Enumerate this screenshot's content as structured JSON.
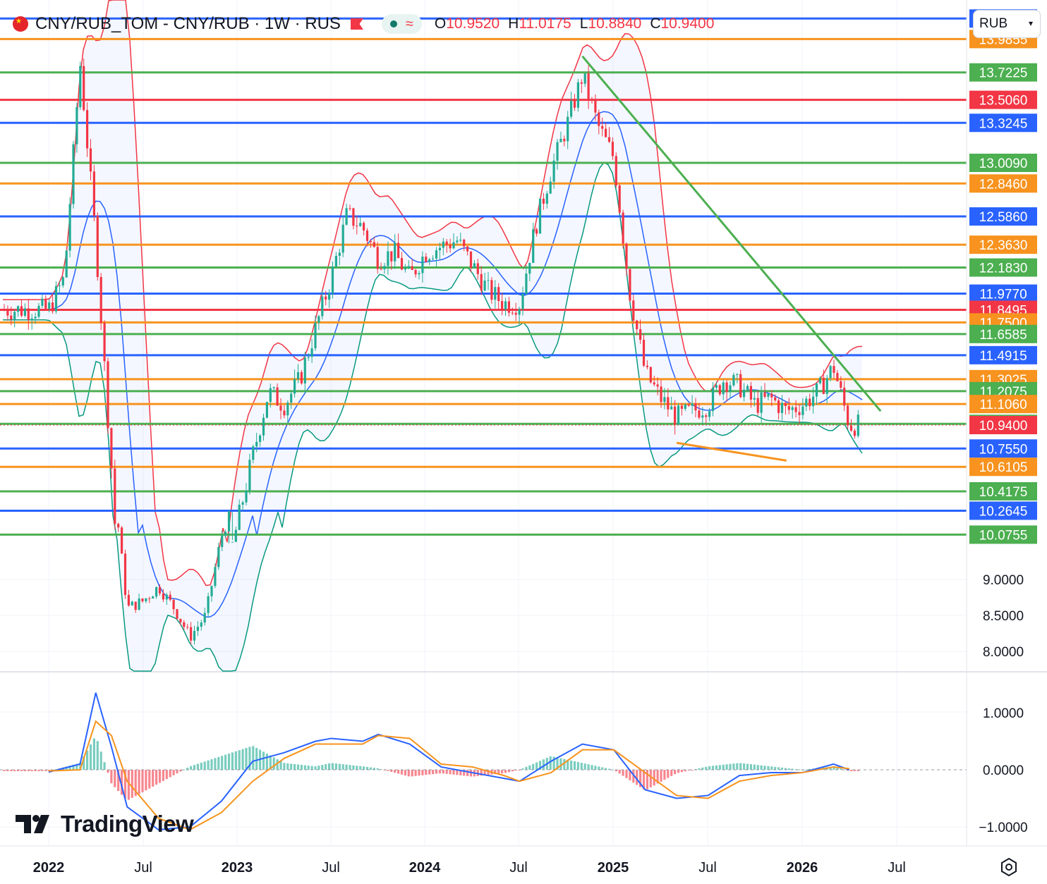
{
  "header": {
    "symbol": "CNY/RUB_TOM - CNY/RUB · 1W · RUS",
    "open_label": "O",
    "open": "10.9520",
    "high_label": "H",
    "high": "11.0175",
    "low_label": "L",
    "low": "10.8840",
    "close_label": "C",
    "close": "10.9400",
    "currency": "RUB",
    "pill_icon": "wave-icon"
  },
  "branding": {
    "logo_text": "TradingView"
  },
  "colors": {
    "up": "#22ab94",
    "down": "#f23645",
    "orange": "#f7931e",
    "green": "#4caf50",
    "blue": "#2962ff",
    "red": "#f23645",
    "macd": "#2962ff",
    "signal": "#f7931e"
  },
  "chart_data": [
    {
      "type": "candlestick",
      "timeframe": "1W",
      "x_ticks": [
        "2022",
        "Jul",
        "2023",
        "Jul",
        "2024",
        "Jul",
        "2025",
        "Jul",
        "2026",
        "Jul"
      ],
      "y_ticks": [
        "9.0000",
        "8.5000",
        "8.0000"
      ],
      "last_price": 10.94,
      "last_price_label": "10.9400",
      "ohlc_last": {
        "open": 10.952,
        "high": 11.0175,
        "low": 10.884,
        "close": 10.94
      },
      "level_lines": [
        {
          "value": 14.1475,
          "label": "14.1475",
          "color": "blue"
        },
        {
          "value": 13.9855,
          "label": "13.9855",
          "color": "orange"
        },
        {
          "value": 13.7225,
          "label": "13.7225",
          "color": "green"
        },
        {
          "value": 13.506,
          "label": "13.5060",
          "color": "red"
        },
        {
          "value": 13.3245,
          "label": "13.3245",
          "color": "blue"
        },
        {
          "value": 13.009,
          "label": "13.0090",
          "color": "green"
        },
        {
          "value": 12.846,
          "label": "12.8460",
          "color": "orange"
        },
        {
          "value": 12.586,
          "label": "12.5860",
          "color": "blue"
        },
        {
          "value": 12.363,
          "label": "12.3630",
          "color": "orange"
        },
        {
          "value": 12.183,
          "label": "12.1830",
          "color": "green"
        },
        {
          "value": 11.977,
          "label": "11.9770",
          "color": "blue"
        },
        {
          "value": 11.8495,
          "label": "11.8495",
          "color": "red"
        },
        {
          "value": 11.75,
          "label": "11.7500",
          "color": "orange"
        },
        {
          "value": 11.6585,
          "label": "11.6585",
          "color": "green"
        },
        {
          "value": 11.4915,
          "label": "11.4915",
          "color": "blue"
        },
        {
          "value": 11.3025,
          "label": "11.3025",
          "color": "orange"
        },
        {
          "value": 11.2075,
          "label": "11.2075",
          "color": "green"
        },
        {
          "value": 11.106,
          "label": "11.1060",
          "color": "orange"
        },
        {
          "value": 10.9495,
          "label": "10.9495",
          "color": "green"
        },
        {
          "value": 10.755,
          "label": "10.7550",
          "color": "blue"
        },
        {
          "value": 10.6105,
          "label": "10.6105",
          "color": "orange"
        },
        {
          "value": 10.4175,
          "label": "10.4175",
          "color": "green"
        },
        {
          "value": 10.2645,
          "label": "10.2645",
          "color": "blue"
        },
        {
          "value": 10.0755,
          "label": "10.0755",
          "color": "green"
        }
      ],
      "close_path": [
        [
          "2022-01",
          11.85
        ],
        [
          "2022-02",
          12.1
        ],
        [
          "2022-03",
          13.8
        ],
        [
          "2022-04",
          12.4
        ],
        [
          "2022-05",
          10.6
        ],
        [
          "2022-06",
          8.6
        ],
        [
          "2022-07",
          8.7
        ],
        [
          "2022-08",
          8.9
        ],
        [
          "2022-09",
          8.6
        ],
        [
          "2022-10",
          8.2
        ],
        [
          "2022-11",
          8.5
        ],
        [
          "2022-12",
          9.6
        ],
        [
          "2023-01",
          10.15
        ],
        [
          "2023-02",
          10.7
        ],
        [
          "2023-03",
          11.2
        ],
        [
          "2023-04",
          11.1
        ],
        [
          "2023-05",
          11.3
        ],
        [
          "2023-06",
          11.7
        ],
        [
          "2023-07",
          12.1
        ],
        [
          "2023-08",
          12.6
        ],
        [
          "2023-09",
          12.5
        ],
        [
          "2023-10",
          12.25
        ],
        [
          "2023-11",
          12.3
        ],
        [
          "2023-12",
          12.1
        ],
        [
          "2024-01",
          12.3
        ],
        [
          "2024-02",
          12.35
        ],
        [
          "2024-03",
          12.4
        ],
        [
          "2024-04",
          12.2
        ],
        [
          "2024-05",
          12.0
        ],
        [
          "2024-06",
          11.9
        ],
        [
          "2024-07",
          11.9
        ],
        [
          "2024-08",
          12.5
        ],
        [
          "2024-09",
          12.95
        ],
        [
          "2024-10",
          13.3
        ],
        [
          "2024-11",
          13.7
        ],
        [
          "2024-12",
          13.3
        ],
        [
          "2025-01",
          13.05
        ],
        [
          "2025-02",
          12.0
        ],
        [
          "2025-03",
          11.35
        ],
        [
          "2025-04",
          11.15
        ],
        [
          "2025-05",
          11.0
        ],
        [
          "2025-06",
          11.05
        ],
        [
          "2025-07",
          11.1
        ],
        [
          "2025-08",
          11.3
        ],
        [
          "2025-09",
          11.25
        ],
        [
          "2025-10",
          11.1
        ],
        [
          "2025-11",
          11.15
        ],
        [
          "2025-12",
          11.05
        ],
        [
          "2026-01",
          11.1
        ],
        [
          "2026-02",
          11.2
        ],
        [
          "2026-03",
          11.4
        ],
        [
          "2026-04",
          10.94
        ]
      ],
      "trendlines": [
        {
          "color": "green",
          "from": [
            "2024-11",
            13.85
          ],
          "to": [
            "2026-06",
            11.05
          ]
        },
        {
          "color": "orange",
          "from": [
            "2025-05",
            10.8
          ],
          "to": [
            "2025-12",
            10.66
          ]
        }
      ]
    },
    {
      "type": "macd",
      "y_ticks": [
        "1.0000",
        "0.0000",
        "−1.0000"
      ],
      "macd": [
        [
          "2022-01",
          -0.04
        ],
        [
          "2022-03",
          0.1
        ],
        [
          "2022-04",
          1.35
        ],
        [
          "2022-05",
          0.4
        ],
        [
          "2022-06",
          -0.65
        ],
        [
          "2022-08",
          -1.05
        ],
        [
          "2022-10",
          -1.0
        ],
        [
          "2022-12",
          -0.55
        ],
        [
          "2023-02",
          0.15
        ],
        [
          "2023-04",
          0.3
        ],
        [
          "2023-06",
          0.5
        ],
        [
          "2023-07",
          0.55
        ],
        [
          "2023-09",
          0.5
        ],
        [
          "2023-10",
          0.62
        ],
        [
          "2023-12",
          0.45
        ],
        [
          "2024-02",
          0.05
        ],
        [
          "2024-04",
          -0.05
        ],
        [
          "2024-06",
          -0.15
        ],
        [
          "2024-07",
          -0.2
        ],
        [
          "2024-09",
          0.15
        ],
        [
          "2024-11",
          0.45
        ],
        [
          "2025-01",
          0.35
        ],
        [
          "2025-03",
          -0.35
        ],
        [
          "2025-05",
          -0.5
        ],
        [
          "2025-07",
          -0.45
        ],
        [
          "2025-09",
          -0.1
        ],
        [
          "2025-11",
          -0.05
        ],
        [
          "2026-01",
          -0.05
        ],
        [
          "2026-03",
          0.1
        ],
        [
          "2026-04",
          0.0
        ]
      ],
      "signal": [
        [
          "2022-01",
          -0.02
        ],
        [
          "2022-03",
          0.0
        ],
        [
          "2022-04",
          0.85
        ],
        [
          "2022-05",
          0.6
        ],
        [
          "2022-06",
          -0.2
        ],
        [
          "2022-08",
          -0.85
        ],
        [
          "2022-10",
          -1.05
        ],
        [
          "2022-12",
          -0.75
        ],
        [
          "2023-02",
          -0.2
        ],
        [
          "2023-04",
          0.2
        ],
        [
          "2023-06",
          0.45
        ],
        [
          "2023-07",
          0.45
        ],
        [
          "2023-09",
          0.45
        ],
        [
          "2023-10",
          0.6
        ],
        [
          "2023-12",
          0.55
        ],
        [
          "2024-02",
          0.1
        ],
        [
          "2024-04",
          0.05
        ],
        [
          "2024-06",
          -0.1
        ],
        [
          "2024-07",
          -0.2
        ],
        [
          "2024-09",
          -0.05
        ],
        [
          "2024-11",
          0.35
        ],
        [
          "2025-01",
          0.35
        ],
        [
          "2025-03",
          -0.05
        ],
        [
          "2025-05",
          -0.45
        ],
        [
          "2025-07",
          -0.5
        ],
        [
          "2025-09",
          -0.2
        ],
        [
          "2025-11",
          -0.1
        ],
        [
          "2026-01",
          -0.05
        ],
        [
          "2026-03",
          0.05
        ],
        [
          "2026-04",
          0.02
        ]
      ]
    }
  ]
}
